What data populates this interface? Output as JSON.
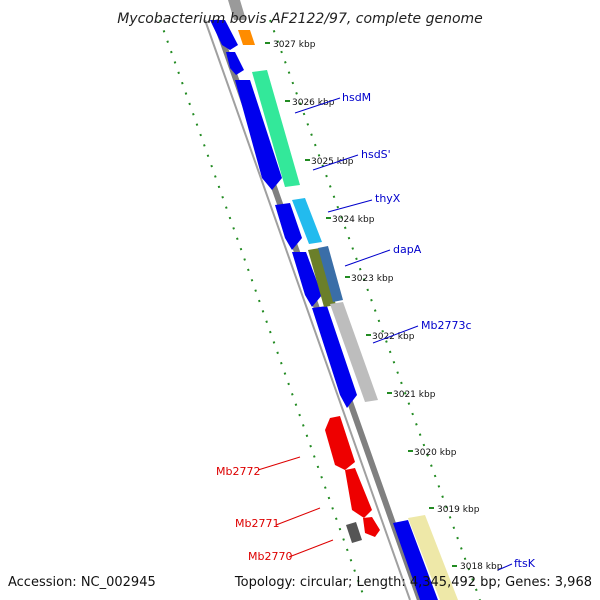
{
  "title": "Mycobacterium bovis AF2122/97, complete genome",
  "footer": {
    "accession": "Accession: NC_002945",
    "summary": "Topology: circular; Length: 4,345,492 bp; Genes: 3,968"
  },
  "ticks": [
    "3027 kbp",
    "3026 kbp",
    "3025 kbp",
    "3024 kbp",
    "3023 kbp",
    "3022 kbp",
    "3021 kbp",
    "3020 kbp",
    "3019 kbp",
    "3018 kbp"
  ],
  "genes_right": [
    "hsdM",
    "hsdS'",
    "thyX",
    "dapA",
    "Mb2773c",
    "ftsK"
  ],
  "genes_left": [
    "Mb2772",
    "Mb2771",
    "Mb2770"
  ],
  "colors": {
    "backbone": "#808080",
    "cds_reverse": "#0000ee",
    "cds_forward": "#ee0000",
    "gc_dots": "#228b22",
    "label_right": "#0000cc",
    "label_left": "#dd0000",
    "hsdM": "#33e89a",
    "thyX": "#22bbee",
    "dapA": "#6b7f2a",
    "Mb2773c": "#bdbdbd",
    "ftsK": "#eee8a8",
    "orange": "#ff8c00"
  }
}
